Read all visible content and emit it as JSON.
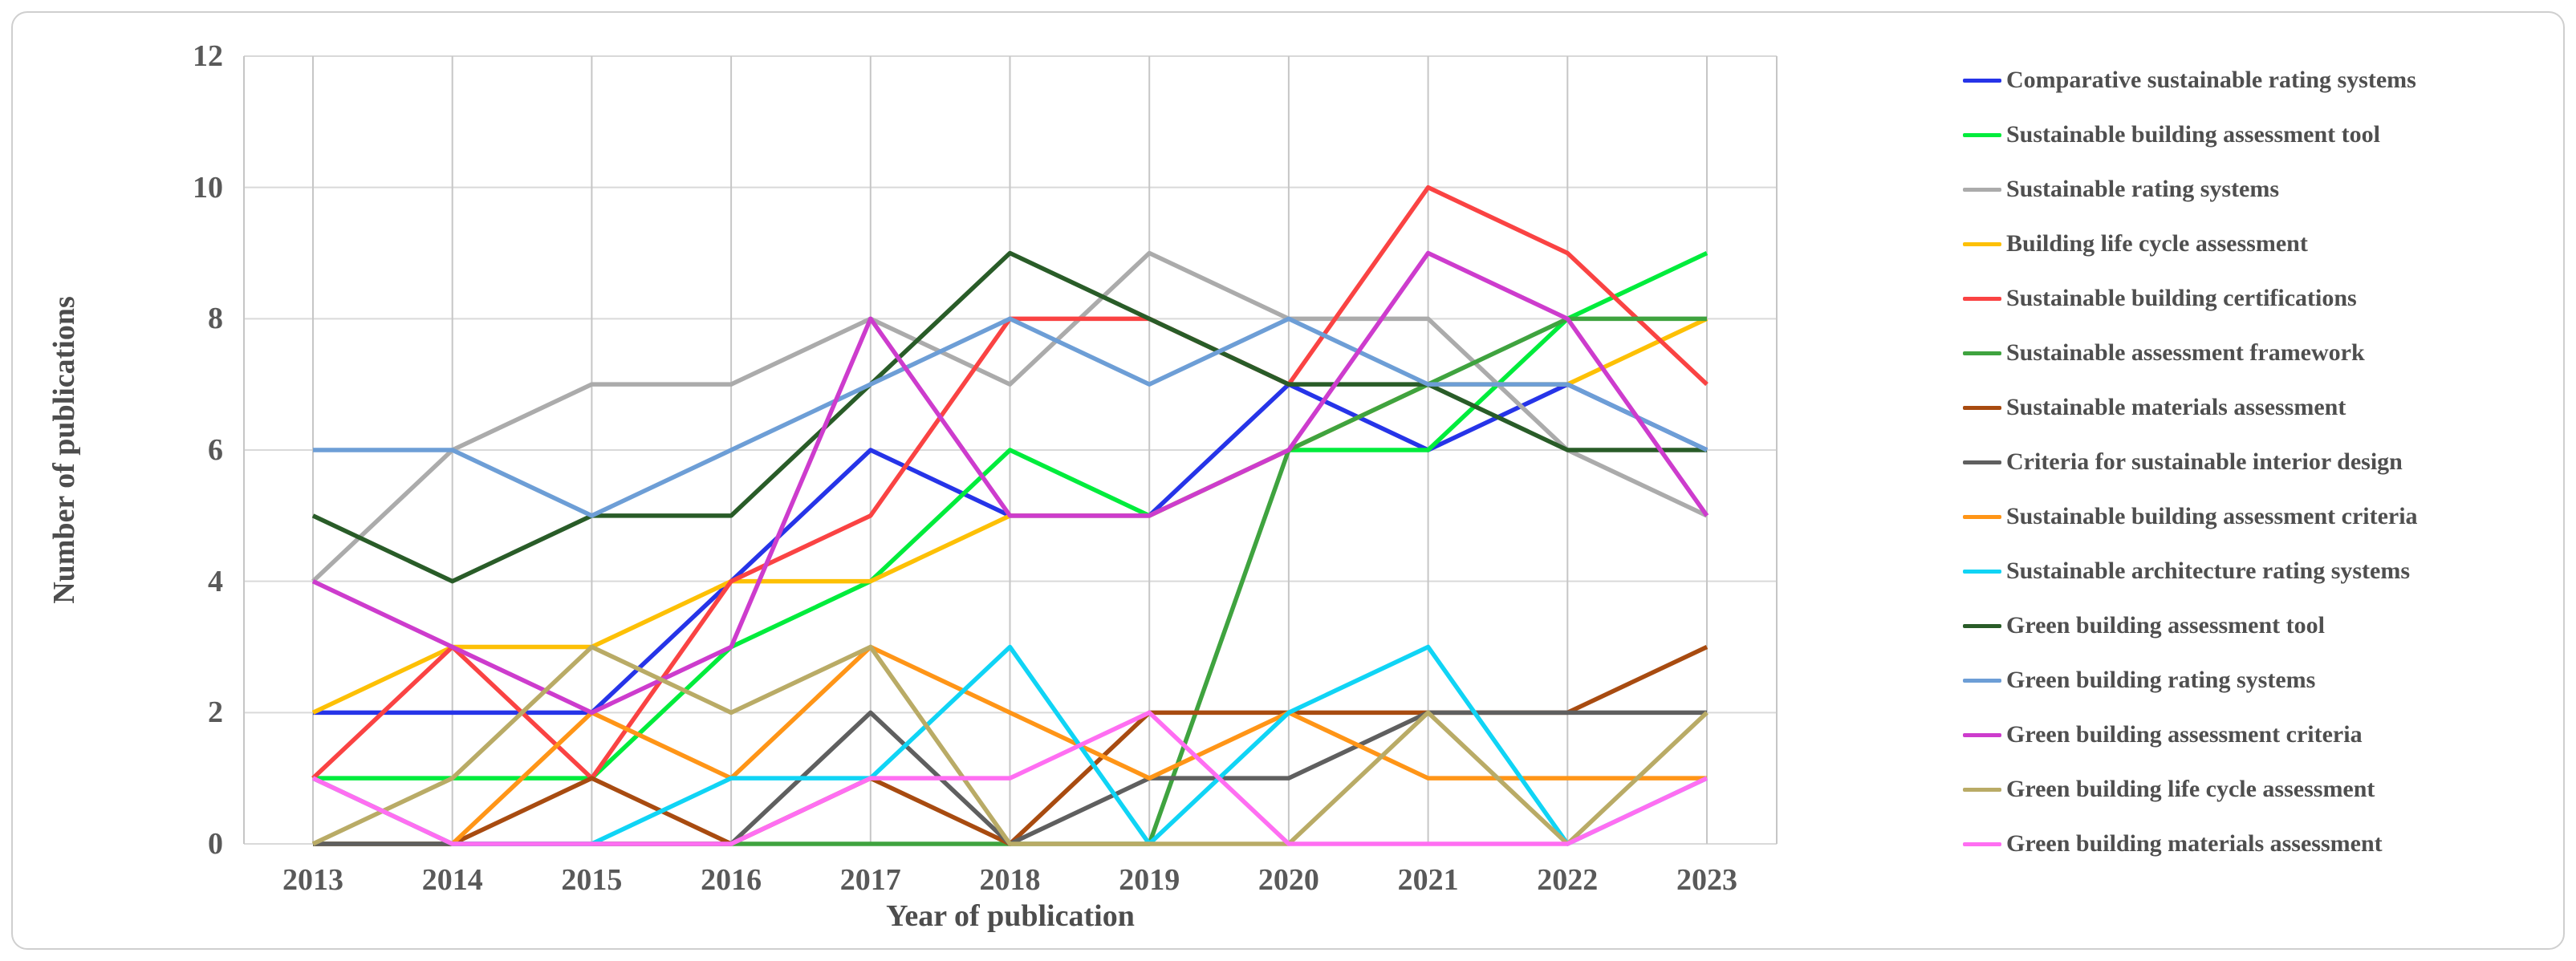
{
  "figure": {
    "y_axis_title": "Number of publications",
    "x_axis_title": "Year of publication",
    "background_color": "#ffffff",
    "frame_border_color": "#cfcfcf",
    "gridline_color_horizontal": "#d9d9d9",
    "gridline_color_vertical": "#c6c6c6",
    "tick_label_color": "#595959",
    "legend_text_color": "#4f4f4f"
  },
  "chart_data": {
    "type": "line",
    "title": "",
    "xlabel": "Year of publication",
    "ylabel": "Number of publications",
    "categories": [
      "2013",
      "2014",
      "2015",
      "2016",
      "2017",
      "2018",
      "2019",
      "2020",
      "2021",
      "2022",
      "2023"
    ],
    "ylim": [
      0,
      12
    ],
    "y_ticks": [
      0,
      2,
      4,
      6,
      8,
      10,
      12
    ],
    "grid": true,
    "legend_position": "right",
    "series": [
      {
        "name": "Comparative sustainable rating systems",
        "color": "#2634e8",
        "values": [
          2,
          2,
          2,
          4,
          6,
          5,
          5,
          7,
          6,
          7,
          6
        ]
      },
      {
        "name": "Sustainable building assessment tool",
        "color": "#00ec3c",
        "values": [
          1,
          1,
          1,
          3,
          4,
          6,
          5,
          6,
          6,
          8,
          9
        ]
      },
      {
        "name": "Sustainable rating systems",
        "color": "#ababab",
        "values": [
          4,
          6,
          7,
          7,
          8,
          7,
          9,
          8,
          8,
          6,
          5
        ]
      },
      {
        "name": "Building life cycle assessment",
        "color": "#fdc005",
        "values": [
          2,
          3,
          3,
          4,
          4,
          5,
          5,
          6,
          7,
          7,
          8
        ]
      },
      {
        "name": "Sustainable building certifications",
        "color": "#fa4343",
        "values": [
          1,
          3,
          1,
          4,
          5,
          8,
          8,
          7,
          10,
          9,
          7
        ]
      },
      {
        "name": "Sustainable assessment framework",
        "color": "#3fa33f",
        "values": [
          0,
          0,
          0,
          0,
          0,
          0,
          0,
          6,
          7,
          8,
          8
        ]
      },
      {
        "name": "Sustainable materials assessment",
        "color": "#a84b10",
        "values": [
          0,
          0,
          1,
          0,
          1,
          0,
          2,
          2,
          2,
          2,
          3
        ]
      },
      {
        "name": "Criteria for sustainable interior design",
        "color": "#5f5f5f",
        "values": [
          0,
          0,
          0,
          0,
          2,
          0,
          1,
          1,
          2,
          2,
          2
        ]
      },
      {
        "name": "Sustainable building assessment criteria",
        "color": "#ff9517",
        "values": [
          1,
          0,
          2,
          1,
          3,
          2,
          1,
          2,
          1,
          1,
          1
        ]
      },
      {
        "name": "Sustainable architecture rating systems",
        "color": "#10d4f5",
        "values": [
          1,
          0,
          0,
          1,
          1,
          3,
          0,
          2,
          3,
          0,
          1
        ]
      },
      {
        "name": "Green building assessment tool",
        "color": "#295c28",
        "values": [
          5,
          4,
          5,
          5,
          7,
          9,
          8,
          7,
          7,
          6,
          6
        ]
      },
      {
        "name": "Green building rating systems",
        "color": "#6d9ed6",
        "values": [
          6,
          6,
          5,
          6,
          7,
          8,
          7,
          8,
          7,
          7,
          6
        ]
      },
      {
        "name": "Green building assessment criteria",
        "color": "#cd3ccd",
        "values": [
          4,
          3,
          2,
          3,
          8,
          5,
          5,
          6,
          9,
          8,
          5
        ]
      },
      {
        "name": "Green building life cycle assessment",
        "color": "#b9ab66",
        "values": [
          0,
          1,
          3,
          2,
          3,
          0,
          0,
          0,
          2,
          0,
          2
        ]
      },
      {
        "name": "Green building materials assessment",
        "color": "#ff6ef2",
        "values": [
          1,
          0,
          0,
          0,
          1,
          1,
          2,
          0,
          0,
          0,
          1
        ]
      }
    ]
  }
}
